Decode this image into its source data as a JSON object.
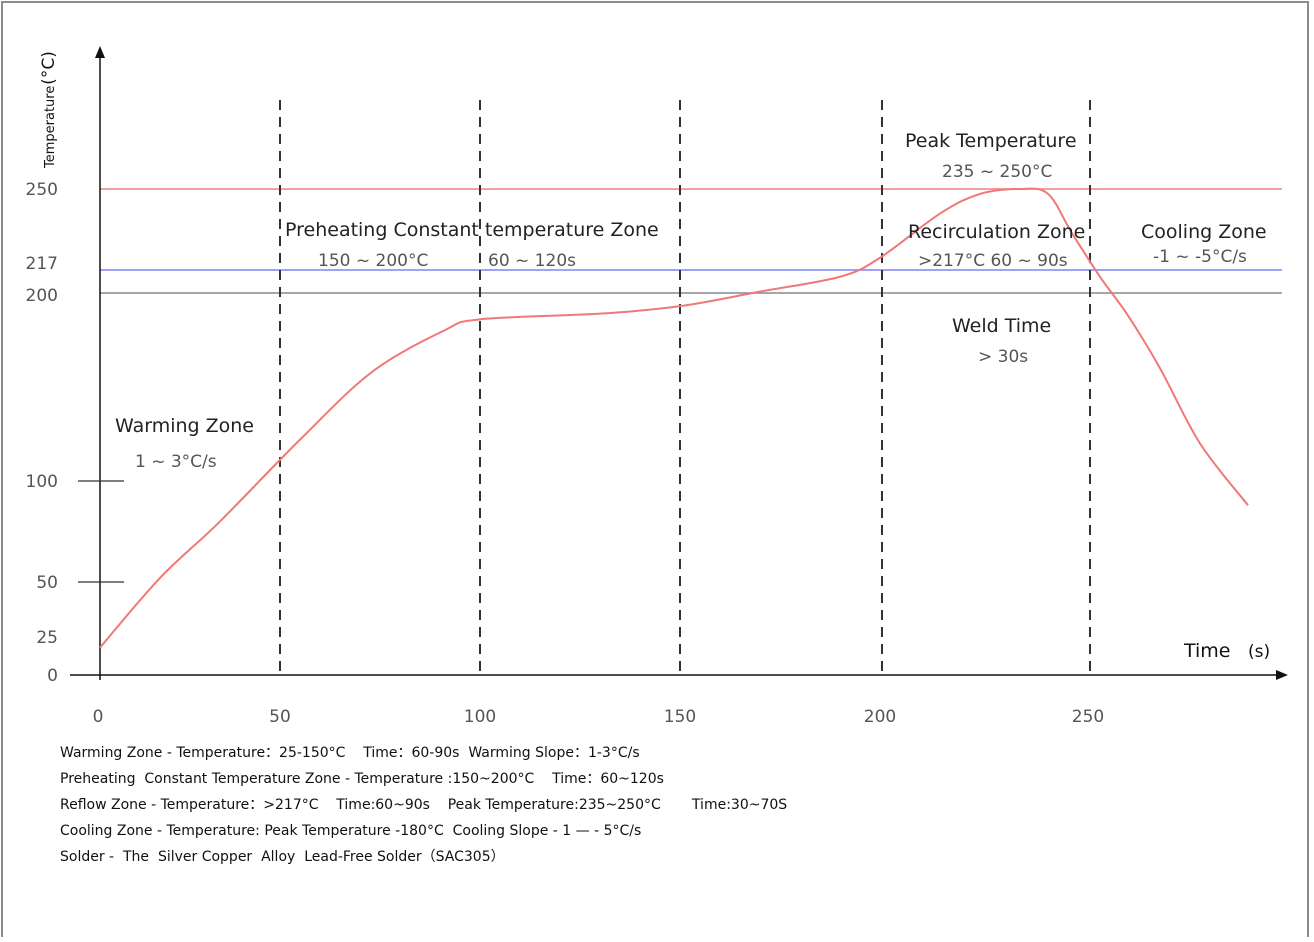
{
  "chart_data": {
    "type": "line",
    "ylabel": "Temperature",
    "ylabel_unit": "(°C)",
    "xlabel": "Time",
    "xlabel_unit": "(s)",
    "x_ticks": [
      0,
      50,
      100,
      150,
      200,
      250
    ],
    "y_ticks": [
      0,
      25,
      50,
      100,
      200,
      217,
      250
    ],
    "xlim": [
      0,
      295
    ],
    "ylim": [
      0,
      330
    ],
    "zone_boundaries": [
      50,
      100,
      150,
      200,
      250
    ],
    "reference_lines": [
      {
        "value": 250,
        "color": "#f08080"
      },
      {
        "value": 217,
        "color": "#8080ff"
      },
      {
        "value": 200,
        "color": "#888888"
      }
    ],
    "series": [
      {
        "color": "#f07878",
        "x": [
          0,
          15,
          30,
          50,
          70,
          90,
          100,
          130,
          150,
          170,
          190,
          200,
          215,
          225,
          235,
          242,
          248,
          255,
          262,
          270,
          280,
          292
        ],
        "y": [
          18,
          52,
          80,
          122,
          158,
          180,
          186,
          189,
          193,
          201,
          212,
          222,
          240,
          248,
          250,
          248,
          232,
          212,
          188,
          160,
          120,
          88
        ]
      }
    ],
    "annotations": [
      {
        "id": "warming",
        "title": "Warming Zone",
        "detail": "1 ~ 3°C/s"
      },
      {
        "id": "preheating",
        "title": "Preheating Constant temperature Zone",
        "detail1": "150 ~ 200°C",
        "detail2": "60 ~ 120s"
      },
      {
        "id": "peak",
        "title": "Peak Temperature",
        "detail": "235 ~ 250°C"
      },
      {
        "id": "recirculation",
        "title": "Recirculation Zone",
        "detail": ">217°C  60 ~ 90s"
      },
      {
        "id": "weld",
        "title": "Weld Time",
        "detail": "> 30s"
      },
      {
        "id": "cooling",
        "title": "Cooling Zone",
        "detail": "-1 ~ -5°C/s"
      }
    ]
  },
  "notes": [
    "Warming Zone - Temperature：25-150°C    Time：60-90s  Warming Slope：1-3°C/s",
    "Preheating  Constant Temperature Zone - Temperature :150~200°C    Time：60~120s",
    "Reflow Zone - Temperature：>217°C    Time:60~90s    Peak Temperature:235~250°C       Time:30~70S",
    "Cooling Zone - Temperature: Peak Temperature -180°C  Cooling Slope - 1 — - 5°C/s",
    "Solder -  The  Silver Copper  Alloy  Lead-Free Solder（SAC305）"
  ]
}
